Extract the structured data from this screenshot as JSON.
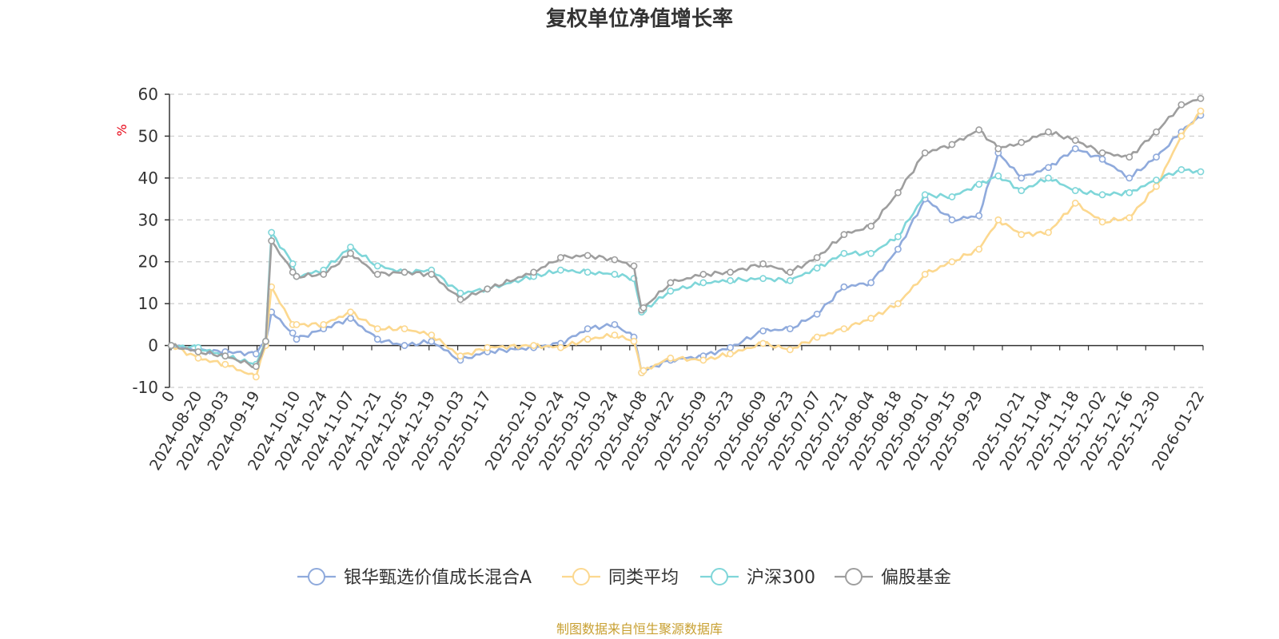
{
  "colors": {
    "fund": "#8faadc",
    "peer": "#fcd88f",
    "csi300": "#7fd6d9",
    "equity": "#9e9e9e",
    "grid": "#cccccc",
    "axis": "#333333",
    "unit": "#e60012",
    "source": "#c8a032"
  },
  "chart_data": {
    "type": "line",
    "title": "复权单位净值增长率",
    "ylabel": "%",
    "ylim": [
      -10,
      60
    ],
    "yticks": [
      -10,
      0,
      10,
      20,
      30,
      40,
      50,
      60
    ],
    "grid": "horizontal-dashed",
    "legend_position": "bottom",
    "source_note": "制图数据来自恒生聚源数据库",
    "x_tick_labels": [
      "0",
      "2024-08-20",
      "2024-09-03",
      "2024-09-19",
      "2024-10-10",
      "2024-10-24",
      "2024-11-07",
      "2024-11-21",
      "2024-12-05",
      "2024-12-19",
      "2025-01-03",
      "2025-01-17",
      "2025-02-10",
      "2025-02-24",
      "2025-03-10",
      "2025-03-24",
      "2025-04-08",
      "2025-04-22",
      "2025-05-09",
      "2025-05-23",
      "2025-06-09",
      "2025-06-23",
      "2025-07-07",
      "2025-07-21",
      "2025-08-04",
      "2025-08-18",
      "2025-09-01",
      "2025-09-15",
      "2025-09-29",
      "2025-10-21",
      "2025-11-04",
      "2025-11-18",
      "2025-12-02",
      "2025-12-16",
      "2025-12-30",
      "2026-01-22"
    ],
    "x": [
      "2024-08-06",
      "2024-08-20",
      "2024-09-03",
      "2024-09-19",
      "2024-09-24",
      "2024-09-27",
      "2024-10-08",
      "2024-10-10",
      "2024-10-24",
      "2024-11-07",
      "2024-11-21",
      "2024-12-05",
      "2024-12-19",
      "2025-01-03",
      "2025-01-17",
      "2025-02-10",
      "2025-02-24",
      "2025-03-10",
      "2025-03-24",
      "2025-04-03",
      "2025-04-07",
      "2025-04-08",
      "2025-04-22",
      "2025-05-09",
      "2025-05-23",
      "2025-06-09",
      "2025-06-23",
      "2025-07-07",
      "2025-07-21",
      "2025-08-04",
      "2025-08-18",
      "2025-09-01",
      "2025-09-15",
      "2025-09-29",
      "2025-10-09",
      "2025-10-21",
      "2025-11-04",
      "2025-11-18",
      "2025-12-02",
      "2025-12-16",
      "2025-12-30",
      "2026-01-12",
      "2026-01-22"
    ],
    "series": [
      {
        "name": "银华甄选价值成长混合A",
        "color_key": "fund",
        "values": [
          0,
          -1.2,
          -1.5,
          -2,
          1,
          8,
          3,
          1.5,
          4,
          6.5,
          1.5,
          0,
          1,
          -3.5,
          -1.5,
          -0.5,
          0.5,
          4,
          5,
          2,
          -6.5,
          -6,
          -3.5,
          -2.5,
          -0.5,
          3.5,
          4,
          7.5,
          14,
          15,
          23,
          35,
          30,
          31,
          46,
          40,
          42.5,
          47,
          44.5,
          40,
          45,
          51,
          55
        ]
      },
      {
        "name": "同类平均",
        "color_key": "peer",
        "values": [
          0,
          -3,
          -4.5,
          -7.5,
          0,
          14,
          5,
          5,
          5,
          8,
          4,
          4,
          2.5,
          -2.5,
          -0.5,
          0,
          -0.5,
          1.5,
          2.5,
          1,
          -6.5,
          -6,
          -3,
          -3.5,
          -2,
          0.5,
          -1,
          2,
          4,
          6.5,
          10,
          17,
          20,
          23,
          30,
          26.5,
          27,
          34,
          29.5,
          30.5,
          38,
          50,
          56
        ]
      },
      {
        "name": "沪深300",
        "color_key": "csi300",
        "values": [
          0,
          -0.5,
          -2.5,
          -4.5,
          1,
          27,
          19.5,
          16.5,
          18,
          23.5,
          19,
          17.5,
          18,
          12.5,
          13.5,
          16.5,
          18,
          17.5,
          17,
          16,
          8,
          8.5,
          13,
          15,
          15.5,
          16,
          15.5,
          18.5,
          22,
          22,
          26,
          36,
          35.5,
          38.5,
          40.5,
          37,
          40,
          37,
          36,
          36.5,
          39.5,
          42,
          41.5
        ]
      },
      {
        "name": "偏股基金",
        "color_key": "equity",
        "values": [
          0,
          -1.5,
          -2.5,
          -5,
          1,
          25,
          17.5,
          16.5,
          17,
          22,
          17,
          17.5,
          17,
          11,
          13.5,
          17.5,
          21,
          21.5,
          20.5,
          19,
          8.5,
          9,
          15,
          17,
          17.5,
          19.5,
          17.5,
          21,
          26.5,
          28.5,
          36.5,
          46,
          48,
          51.5,
          47,
          48.5,
          51,
          49,
          46,
          45,
          51,
          57.5,
          59
        ]
      }
    ]
  }
}
